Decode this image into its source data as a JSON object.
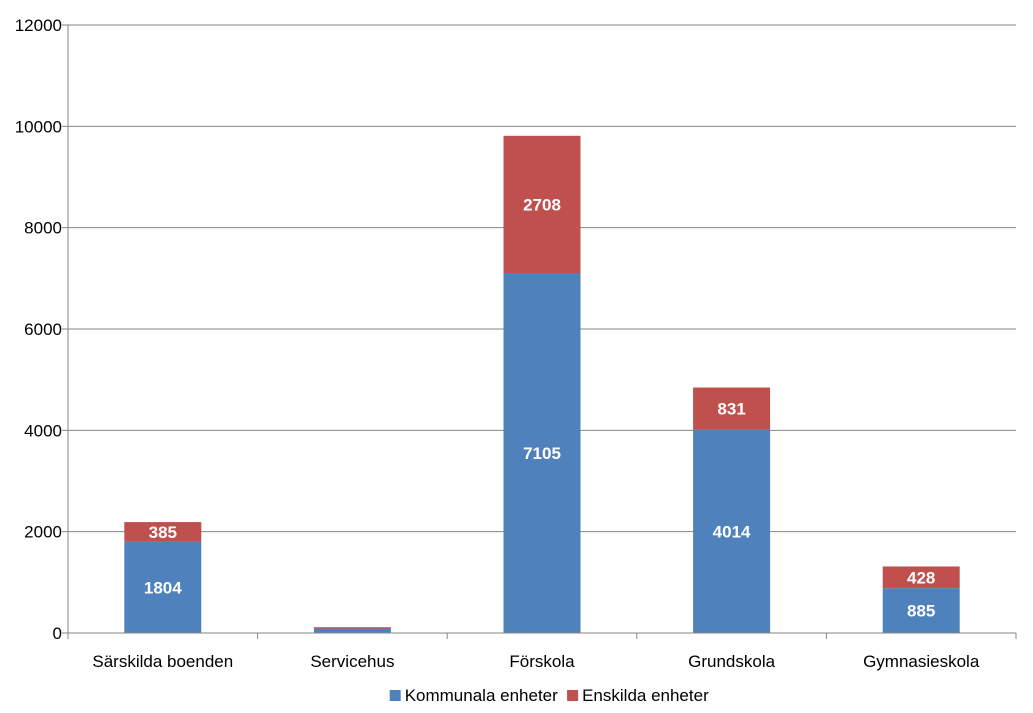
{
  "chart_data": {
    "type": "bar",
    "stacked": true,
    "categories": [
      "Särskilda boenden",
      "Servicehus",
      "Förskola",
      "Grundskola",
      "Gymnasieskola"
    ],
    "series": [
      {
        "name": "Kommunala enheter",
        "color": "#4F81BD",
        "values": [
          1804,
          90,
          7105,
          4014,
          885
        ],
        "labels": [
          "1804",
          "",
          "7105",
          "4014",
          "885"
        ]
      },
      {
        "name": "Enskilda enheter",
        "color": "#C0504D",
        "values": [
          385,
          25,
          2708,
          831,
          428
        ],
        "labels": [
          "385",
          "",
          "2708",
          "831",
          "428"
        ]
      }
    ],
    "ylim": [
      0,
      12000
    ],
    "yticks": [
      "0",
      "2000",
      "4000",
      "6000",
      "8000",
      "10000",
      "12000"
    ],
    "grid": true,
    "legend_position": "bottom"
  }
}
